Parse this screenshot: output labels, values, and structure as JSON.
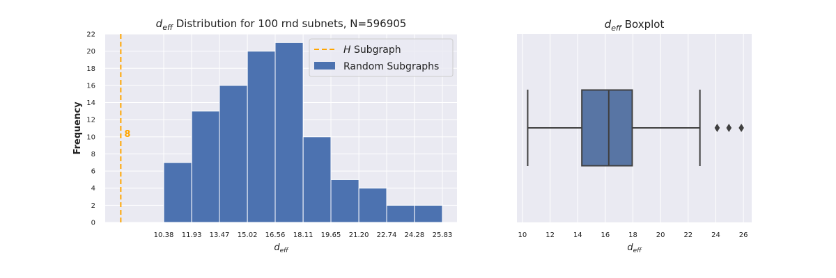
{
  "chart_data": [
    {
      "type": "bar",
      "title_symbol": "d",
      "title_subscript": "eff",
      "title_rest": " Distribution for 100 rnd subnets, N=596905",
      "xlabel_symbol": "d",
      "xlabel_subscript": "eff",
      "ylabel": "Frequency",
      "ylim": [
        0,
        22
      ],
      "yticks": [
        0,
        2,
        4,
        6,
        8,
        10,
        12,
        14,
        16,
        18,
        20,
        22
      ],
      "bin_edges": [
        10.38,
        11.93,
        13.47,
        15.02,
        16.56,
        18.11,
        19.65,
        21.2,
        22.74,
        24.28,
        25.83
      ],
      "xtick_labels": [
        "10.38",
        "11.93",
        "13.47",
        "15.02",
        "16.56",
        "18.11",
        "19.65",
        "21.20",
        "22.74",
        "24.28",
        "25.83"
      ],
      "values": [
        7,
        13,
        16,
        20,
        21,
        10,
        5,
        4,
        2,
        2
      ],
      "reference_line": {
        "x": 8,
        "label": "8",
        "color": "#FFA500"
      },
      "legend": {
        "placement": "top-right",
        "entries": [
          {
            "symbol": "H",
            "text": " Subgraph",
            "style": "dashed-line",
            "color": "#FFA500"
          },
          {
            "text": "Random Subgraphs",
            "style": "patch",
            "color": "#4C72B0"
          }
        ]
      },
      "bar_color": "#4C72B0",
      "grid": true
    },
    {
      "type": "boxplot",
      "title_symbol": "d",
      "title_subscript": "eff",
      "title_rest": " Boxplot",
      "xlabel_symbol": "d",
      "xlabel_subscript": "eff",
      "xlim": [
        9.6,
        26.6
      ],
      "xticks": [
        10,
        12,
        14,
        16,
        18,
        20,
        22,
        24,
        26
      ],
      "whisker_low": 10.38,
      "q1": 14.3,
      "median": 16.25,
      "q3": 17.95,
      "whisker_high": 22.85,
      "outliers": [
        24.1,
        24.95,
        25.85
      ],
      "box_color": "#5875A4",
      "grid": true
    }
  ]
}
